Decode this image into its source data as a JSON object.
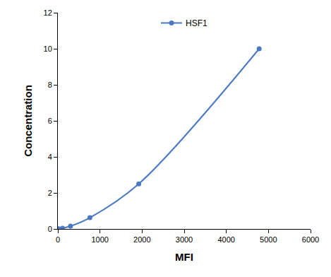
{
  "chart_data": {
    "type": "line",
    "x_label": "MFI",
    "y_label": "Concentration",
    "x": [
      20,
      110,
      300,
      760,
      1920,
      4780
    ],
    "series": [
      {
        "name": "HSF1",
        "color": "#4a78c2",
        "values": [
          0.01,
          0.039,
          0.156,
          0.625,
          2.5,
          10
        ],
        "marker": "circle",
        "line_style": "smooth"
      }
    ],
    "xlim": [
      0,
      6000
    ],
    "xticks": [
      0,
      1000,
      2000,
      3000,
      4000,
      5000,
      6000
    ],
    "ylim": [
      0,
      12
    ],
    "yticks": [
      0,
      2,
      4,
      6,
      8,
      10,
      12
    ],
    "grid": false,
    "legend": "top"
  }
}
